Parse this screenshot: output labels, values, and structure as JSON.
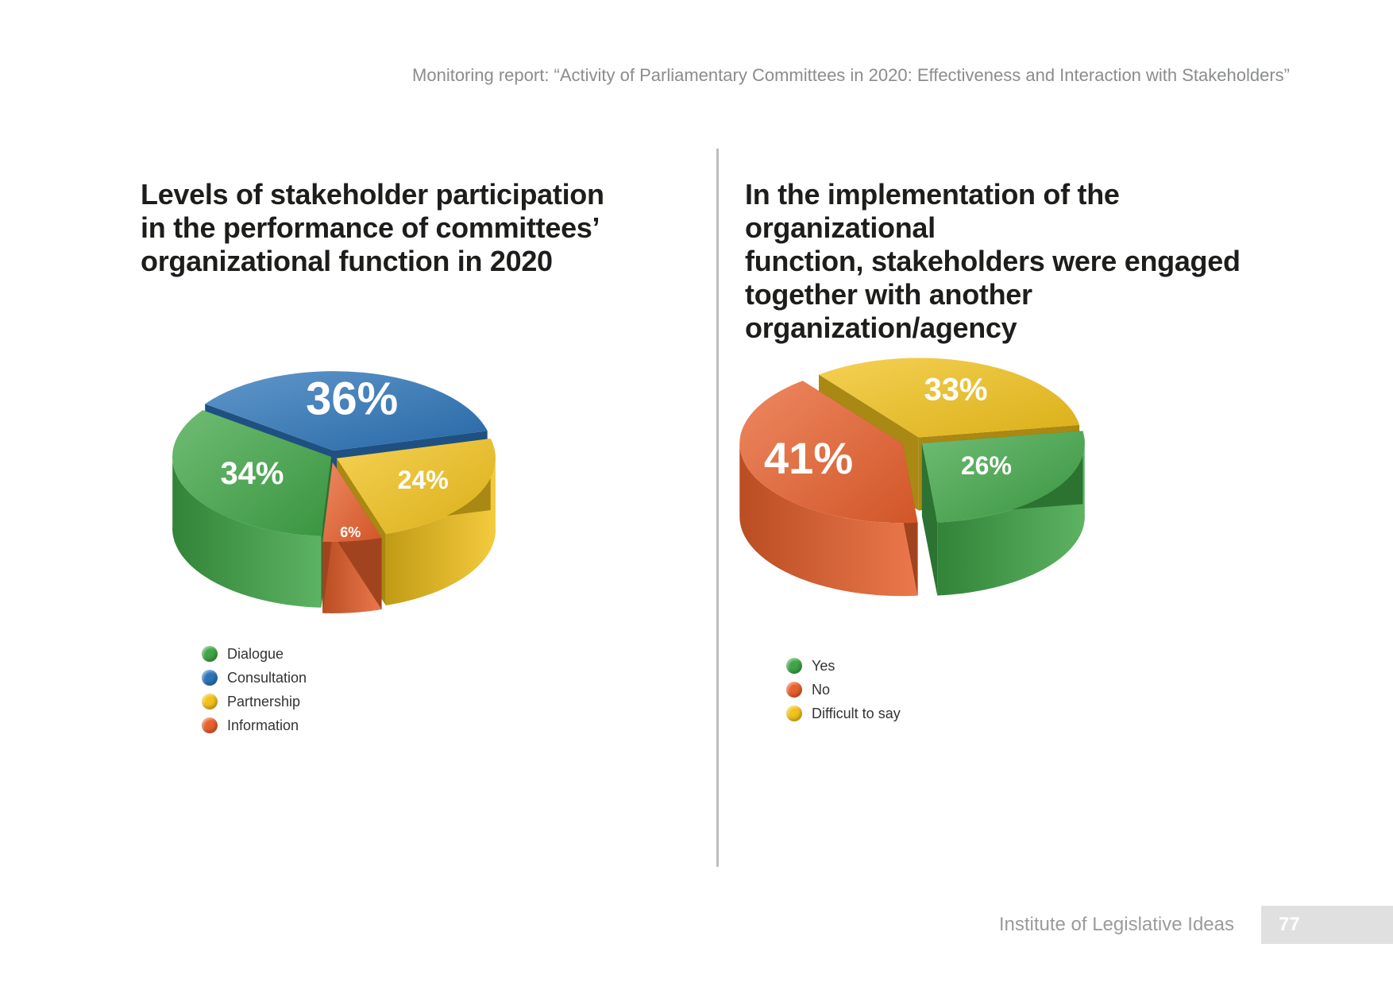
{
  "header": {
    "running_title": "Monitoring report: “Activity of Parliamentary Committees in 2020: Effectiveness and Interaction with Stakeholders”"
  },
  "footer": {
    "organization": "Institute of Legislative Ideas",
    "page_number": "77"
  },
  "chart_data": [
    {
      "type": "pie",
      "title_lines": [
        "Levels of stakeholder participation",
        "in the performance of committees’",
        "organizational function in 2020"
      ],
      "categories": [
        "Dialogue",
        "Consultation",
        "Partnership",
        "Information"
      ],
      "values": [
        34,
        36,
        24,
        6
      ],
      "unit": "%",
      "colors": [
        "#3fa546",
        "#2b74b8",
        "#f2c21b",
        "#e8602c"
      ],
      "legend_position": "bottom-left"
    },
    {
      "type": "pie",
      "title_lines": [
        "In the implementation of the organizational",
        "function, stakeholders were engaged",
        "together with another organization/agency"
      ],
      "categories": [
        "Yes",
        "No",
        "Difficult to say"
      ],
      "values": [
        26,
        41,
        33
      ],
      "unit": "%",
      "colors": [
        "#3fa546",
        "#e8602c",
        "#f2c21b"
      ],
      "legend_position": "bottom-left"
    }
  ]
}
